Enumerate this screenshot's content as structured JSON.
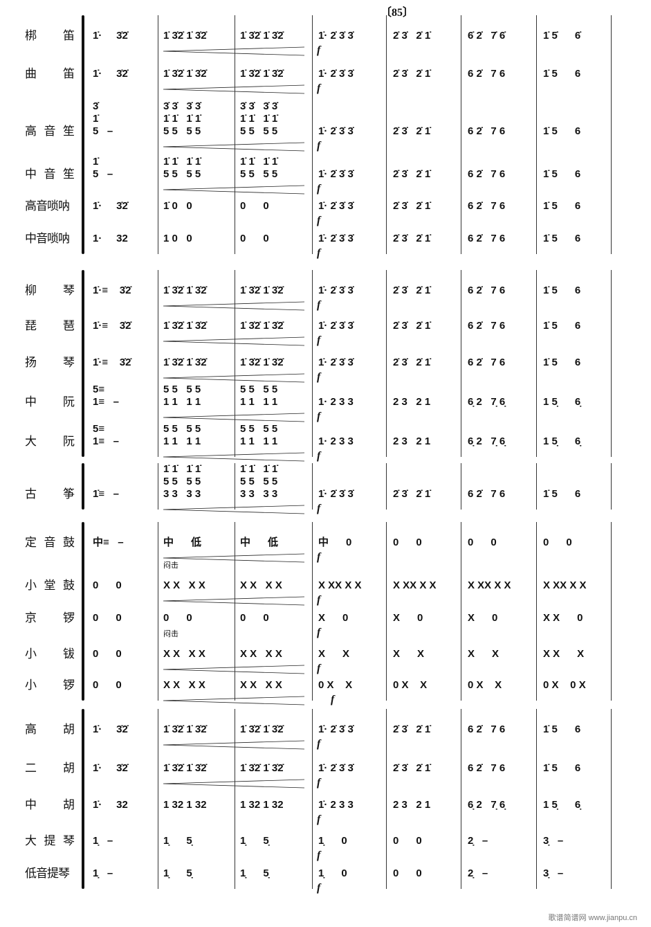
{
  "page_number": "〔85〕",
  "dynamic": "f",
  "annotation": "闷击",
  "watermark": "歌谱简谱网 www.jianpu.cn",
  "rows": [
    {
      "label": "梆  笛",
      "m": [
        "1̇·     3̇2̇",
        "1̇ 3̇2̇ 1̇ 3̇2̇",
        "1̇ 3̇2̇ 1̇ 3̇2̇",
        "1̇· 2̇ 3̇ 3̇",
        "2̇ 3̇   2̇ 1̇",
        "6̇ 2̇   7̇ 6̇",
        "1̇ 5̇      6̇"
      ]
    },
    {
      "label": "曲  笛",
      "m": [
        "1̇·     3̇2̇",
        "1̇ 3̇2̇ 1̇ 3̇2̇",
        "1̇ 3̇2̇ 1̇ 3̇2̇",
        "1̇· 2̇ 3̇ 3̇",
        "2̇ 3̇   2̇ 1̇",
        "6 2̇   7 6",
        "1̇ 5      6"
      ]
    },
    {
      "label": "高音笙",
      "m": [
        "3̇\n1̇\n5   –",
        "3̇ 3̇   3̇ 3̇\n1̇ 1̇   1̇ 1̇\n5 5   5 5",
        "3̇ 3̇   3̇ 3̇\n1̇ 1̇   1̇ 1̇\n5 5   5 5",
        "1̇· 2̇ 3̇ 3̇",
        "2̇ 3̇   2̇ 1̇",
        "6 2̇   7 6",
        "1̇ 5      6"
      ]
    },
    {
      "label": "中音笙",
      "m": [
        "1̇\n5   –",
        "1̇ 1̇   1̇ 1̇\n5 5   5 5",
        "1̇ 1̇   1̇ 1̇\n5 5   5 5",
        "1̇· 2̇ 3̇ 3̇",
        "2̇ 3̇   2̇ 1̇",
        "6 2̇   7 6",
        "1̇ 5      6"
      ]
    },
    {
      "label": "高音唢呐",
      "m": [
        "1̇·     3̇2̇",
        "1̇ 0   0",
        "0      0",
        "1̇· 2̇ 3̇ 3̇",
        "2̇ 3̇   2̇ 1̇",
        "6 2̇   7 6",
        "1̇ 5      6"
      ]
    },
    {
      "label": "中音唢呐",
      "m": [
        "1·     32",
        "1 0   0",
        "0      0",
        "1̇· 2̇ 3̇ 3̇",
        "2̇ 3̇   2̇ 1̇",
        "6 2̇   7 6",
        "1̇ 5      6"
      ]
    },
    {
      "label": "柳  琴",
      "m": [
        "1̇·≡    3̇2̇",
        "1̇ 3̇2̇ 1̇ 3̇2̇",
        "1̇ 3̇2̇ 1̇ 3̇2̇",
        "1̇· 2̇ 3̇ 3̇",
        "2̇ 3̇   2̇ 1̇",
        "6 2̇   7 6",
        "1̇ 5      6"
      ]
    },
    {
      "label": "琵  琶",
      "m": [
        "1̇·≡    3̇2̇",
        "1̇ 3̇2̇ 1̇ 3̇2̇",
        "1̇ 3̇2̇ 1̇ 3̇2̇",
        "1̇· 2̇ 3̇ 3̇",
        "2̇ 3̇   2̇ 1̇",
        "6 2̇   7 6",
        "1̇ 5      6"
      ]
    },
    {
      "label": "扬  琴",
      "m": [
        "1̇·≡    3̇2̇",
        "1̇ 3̇2̇ 1̇ 3̇2̇",
        "1̇ 3̇2̇ 1̇ 3̇2̇",
        "1̇· 2̇ 3̇ 3̇",
        "2̇ 3̇   2̇ 1̇",
        "6 2̇   7 6",
        "1̇ 5      6"
      ]
    },
    {
      "label": "中  阮",
      "m": [
        "5≡\n1≡   –",
        "5 5   5 5\n1 1   1 1",
        "5 5   5 5\n1 1   1 1",
        "1· 2 3 3",
        "2 3   2 1",
        "6̣ 2   7̣ 6̣",
        "1 5̣      6̣"
      ]
    },
    {
      "label": "大  阮",
      "m": [
        "5≡\n1≡   –",
        "5 5   5 5\n1 1   1 1",
        "5 5   5 5\n1 1   1 1",
        "1· 2 3 3",
        "2 3   2 1",
        "6̣ 2   7̣ 6̣",
        "1 5̣      6̣"
      ]
    },
    {
      "label": "古  筝",
      "m": [
        "1̇≡   –",
        "1̇ 1̇   1̇ 1̇\n5 5   5 5\n3 3   3 3",
        "1̇ 1̇   1̇ 1̇\n5 5   5 5\n3 3   3 3",
        "1̇· 2̇ 3̇ 3̇",
        "2̇ 3̇   2̇ 1̇",
        "6 2̇   7 6",
        "1̇ 5      6"
      ]
    },
    {
      "label": "定音鼓",
      "m": [
        "中≡   –",
        "中      低",
        "中      低",
        "中      0",
        "0      0",
        "0      0",
        "0      0"
      ]
    },
    {
      "label": "小堂鼓",
      "m": [
        "0      0",
        "X X   X X",
        "X X   X X",
        "X XX X X",
        "X XX X X",
        "X XX X X",
        "X XX X X"
      ]
    },
    {
      "label": "京  锣",
      "m": [
        "0      0",
        "0      0",
        "0      0",
        "X      0",
        "X      0",
        "X      0",
        "X X      0"
      ]
    },
    {
      "label": "小  钹",
      "m": [
        "0      0",
        "X X   X X",
        "X X   X X",
        "X      X",
        "X      X",
        "X      X",
        "X X      X"
      ]
    },
    {
      "label": "小  锣",
      "m": [
        "0      0",
        "X X   X X",
        "X X   X X",
        "0 X    X",
        "0 X    X",
        "0 X    X",
        "0 X    0 X"
      ]
    },
    {
      "label": "高  胡",
      "m": [
        "1̇·     3̇2̇",
        "1̇ 3̇2̇ 1̇ 3̇2̇",
        "1̇ 3̇2̇ 1̇ 3̇2̇",
        "1̇· 2̇ 3̇ 3̇",
        "2̇ 3̇   2̇ 1̇",
        "6 2̇   7 6",
        "1̇ 5      6"
      ]
    },
    {
      "label": "二  胡",
      "m": [
        "1̇·     3̇2̇",
        "1̇ 3̇2̇ 1̇ 3̇2̇",
        "1̇ 3̇2̇ 1̇ 3̇2̇",
        "1̇· 2̇ 3̇ 3̇",
        "2̇ 3̇   2̇ 1̇",
        "6 2̇   7 6",
        "1̇ 5      6"
      ]
    },
    {
      "label": "中  胡",
      "m": [
        "1̇·     32",
        "1 32 1 32",
        "1 32 1 32",
        "1̇· 2 3 3",
        "2 3   2 1",
        "6̣ 2   7̣ 6̣",
        "1 5̣      6̣"
      ]
    },
    {
      "label": "大提琴",
      "m": [
        "1̣   –",
        "1̣      5̣",
        "1̣      5̣",
        "1̣      0",
        "0      0",
        "2̣   –",
        "3̣   –"
      ]
    },
    {
      "label": "低音提琴",
      "m": [
        "1̣   –",
        "1̣      5̣",
        "1̣      5̣",
        "1̣      0",
        "0      0",
        "2̣   –",
        "3̣   –"
      ]
    }
  ]
}
